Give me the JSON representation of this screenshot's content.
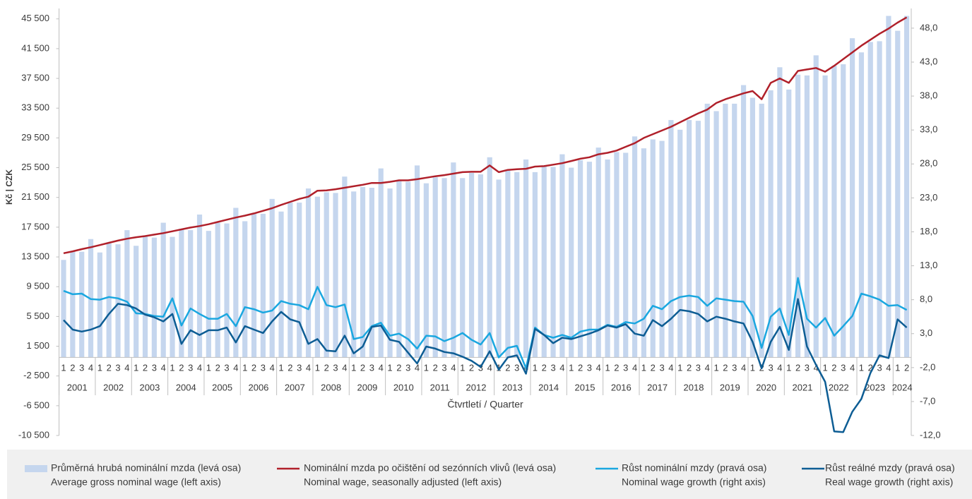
{
  "chart_data": {
    "type": "bar",
    "ylabel": "Kč | CZK",
    "xlabel": "Čtvrtletí / Quarter",
    "categories": [
      "1",
      "2",
      "3",
      "4",
      "1",
      "2",
      "3",
      "4",
      "1",
      "2",
      "3",
      "4",
      "1",
      "2",
      "3",
      "4",
      "1",
      "2",
      "3",
      "4",
      "1",
      "2",
      "3",
      "4",
      "1",
      "2",
      "3",
      "4",
      "1",
      "2",
      "3",
      "4",
      "1",
      "2",
      "3",
      "4",
      "1",
      "2",
      "3",
      "4",
      "1",
      "2",
      "3",
      "4",
      "1",
      "2",
      "3",
      "4",
      "1",
      "2",
      "3",
      "4",
      "1",
      "2",
      "3",
      "4",
      "1",
      "2",
      "3",
      "4",
      "1",
      "2",
      "3",
      "4",
      "1",
      "2",
      "3",
      "4",
      "1",
      "2",
      "3",
      "4",
      "1",
      "2",
      "3",
      "4",
      "1",
      "2",
      "3",
      "4",
      "1",
      "2",
      "3",
      "4",
      "1",
      "2",
      "3",
      "4",
      "1",
      "2",
      "3",
      "4",
      "1",
      "2"
    ],
    "years": [
      "2001",
      "2002",
      "2003",
      "2004",
      "2005",
      "2006",
      "2007",
      "2008",
      "2009",
      "2010",
      "2011",
      "2012",
      "2013",
      "2014",
      "2015",
      "2016",
      "2017",
      "2018",
      "2019",
      "2020",
      "2021",
      "2022",
      "2023",
      "2024"
    ],
    "ylim": [
      -10500,
      46900
    ],
    "yticks": [
      {
        "value": 45500,
        "label": "45 500"
      },
      {
        "value": 41500,
        "label": "41 500"
      },
      {
        "value": 37500,
        "label": "37 500"
      },
      {
        "value": 33500,
        "label": "33 500"
      },
      {
        "value": 29500,
        "label": "29 500"
      },
      {
        "value": 25500,
        "label": "25 500"
      },
      {
        "value": 21500,
        "label": "21 500"
      },
      {
        "value": 17500,
        "label": "17 500"
      },
      {
        "value": 13500,
        "label": "13 500"
      },
      {
        "value": 9500,
        "label": "9 500"
      },
      {
        "value": 5500,
        "label": "5 500"
      },
      {
        "value": 1500,
        "label": "1 500"
      },
      {
        "value": -2500,
        "label": "-2 500"
      },
      {
        "value": -6500,
        "label": "-6 500"
      },
      {
        "value": -10500,
        "label": "-10 500"
      }
    ],
    "y2lim": [
      -12,
      50.9
    ],
    "y2ticks": [
      {
        "value": 48,
        "label": "48,0"
      },
      {
        "value": 43,
        "label": "43,0"
      },
      {
        "value": 38,
        "label": "38,0"
      },
      {
        "value": 33,
        "label": "33,0"
      },
      {
        "value": 28,
        "label": "28,0"
      },
      {
        "value": 23,
        "label": "23,0"
      },
      {
        "value": 18,
        "label": "18,0"
      },
      {
        "value": 13,
        "label": "13,0"
      },
      {
        "value": 8,
        "label": "8,0"
      },
      {
        "value": 3,
        "label": "3,0"
      },
      {
        "value": -2,
        "label": "-2,0"
      },
      {
        "value": -7,
        "label": "-7,0"
      },
      {
        "value": -12,
        "label": "-12,0"
      }
    ],
    "grid": false,
    "legend": "bottom",
    "series": [
      {
        "name": "Průměrná hrubá nominální mzda (levá osa)",
        "name_en": "Average gross nominal wage (left axis)",
        "type": "bar",
        "color": "#c5d6ee",
        "axis": "y",
        "values": [
          13100,
          14300,
          14200,
          15900,
          14100,
          15300,
          15200,
          17100,
          15000,
          16300,
          16100,
          18100,
          16200,
          17300,
          17100,
          19200,
          17000,
          18100,
          18000,
          20100,
          18300,
          19400,
          19300,
          21300,
          19600,
          20800,
          20800,
          22700,
          21600,
          22200,
          22100,
          24300,
          22300,
          22900,
          22800,
          25400,
          22700,
          23700,
          23600,
          25800,
          23400,
          24200,
          24100,
          26200,
          24100,
          24800,
          24600,
          26900,
          23900,
          25100,
          24900,
          26600,
          24900,
          25700,
          25600,
          27300,
          25500,
          26500,
          26300,
          28200,
          26600,
          27600,
          27500,
          29700,
          28100,
          29300,
          29100,
          31900,
          30600,
          31900,
          31800,
          34100,
          33100,
          34100,
          34100,
          36600,
          34900,
          34100,
          35900,
          39000,
          36000,
          38000,
          37900,
          40600,
          37900,
          39200,
          39400,
          42900,
          41000,
          42400,
          42500,
          45900,
          43900,
          45900
        ]
      },
      {
        "name": "Nominální mzda po očištění od sezónních vlivů (levá osa)",
        "name_en": "Nominal wage, seasonally adjusted (left axis)",
        "type": "line",
        "color": "#b0202a",
        "axis": "y",
        "values": [
          14000,
          14250,
          14550,
          14800,
          15100,
          15400,
          15700,
          15950,
          16150,
          16300,
          16500,
          16700,
          16950,
          17200,
          17450,
          17650,
          17900,
          18200,
          18500,
          18800,
          19050,
          19350,
          19700,
          20050,
          20500,
          20900,
          21300,
          21600,
          22400,
          22450,
          22600,
          22800,
          23000,
          23200,
          23450,
          23450,
          23600,
          23800,
          23800,
          23950,
          24150,
          24350,
          24500,
          24700,
          24900,
          24950,
          24950,
          25800,
          24900,
          25200,
          25300,
          25350,
          25650,
          25700,
          25900,
          26100,
          26400,
          26700,
          26900,
          27300,
          27500,
          27800,
          28300,
          28800,
          29500,
          30000,
          30500,
          31000,
          31600,
          32200,
          32800,
          33300,
          34200,
          34700,
          35100,
          35500,
          35800,
          34700,
          36900,
          37500,
          36900,
          38500,
          38700,
          38900,
          38400,
          39200,
          40100,
          41000,
          41900,
          42700,
          43500,
          44200,
          45000,
          45700
        ]
      },
      {
        "name": "Růst nominální mzdy (pravá osa)",
        "name_en": "Nominal wage growth (right axis)",
        "type": "line",
        "color": "#1aa7e0",
        "axis": "y2",
        "values": [
          9.3,
          8.8,
          8.9,
          8.1,
          8.0,
          8.4,
          8.2,
          7.7,
          6.0,
          5.9,
          5.6,
          5.5,
          8.2,
          4.2,
          6.7,
          5.9,
          5.2,
          5.2,
          5.9,
          4.1,
          6.9,
          6.6,
          6.1,
          6.4,
          7.8,
          7.4,
          7.2,
          6.6,
          9.9,
          7.2,
          6.9,
          7.3,
          2.2,
          2.5,
          4.1,
          4.6,
          2.7,
          3.0,
          2.2,
          0.8,
          2.7,
          2.6,
          1.9,
          2.4,
          3.1,
          2.1,
          1.4,
          3.1,
          -0.5,
          0.9,
          1.2,
          -2.1,
          3.9,
          2.8,
          2.4,
          2.8,
          2.4,
          3.3,
          3.6,
          3.6,
          4.3,
          4.0,
          4.7,
          4.5,
          5.2,
          7.1,
          6.6,
          7.8,
          8.4,
          8.6,
          8.4,
          7.1,
          8.2,
          8.0,
          7.8,
          7.7,
          5.6,
          0.9,
          5.5,
          6.7,
          2.8,
          11.2,
          5.2,
          3.9,
          5.3,
          2.7,
          4.1,
          5.6,
          8.9,
          8.5,
          8.0,
          7.1,
          7.2,
          6.5
        ]
      },
      {
        "name": "Růst reálné mzdy (pravá osa)",
        "name_en": "Real wage growth (right axis)",
        "type": "line",
        "color": "#0d5d94",
        "axis": "y2",
        "values": [
          5.0,
          3.6,
          3.3,
          3.6,
          4.1,
          5.9,
          7.4,
          7.2,
          6.7,
          5.8,
          5.4,
          4.8,
          5.9,
          1.5,
          3.5,
          2.8,
          3.5,
          3.5,
          3.9,
          1.7,
          4.1,
          3.6,
          3.1,
          4.8,
          6.2,
          5.1,
          4.7,
          1.5,
          2.2,
          0.5,
          0.4,
          2.7,
          0.1,
          1.1,
          4.0,
          4.2,
          2.1,
          1.8,
          0.2,
          -1.4,
          1.1,
          0.8,
          0.3,
          0.1,
          -0.4,
          -1.0,
          -1.9,
          0.4,
          -2.3,
          -0.5,
          -0.2,
          -2.9,
          3.7,
          2.8,
          1.6,
          2.4,
          2.2,
          2.6,
          3.0,
          3.5,
          4.2,
          3.9,
          4.4,
          3.0,
          2.7,
          5.0,
          4.1,
          5.2,
          6.5,
          6.3,
          5.9,
          4.8,
          5.5,
          5.2,
          4.8,
          4.5,
          1.8,
          -2.1,
          1.8,
          4.0,
          0.6,
          8.1,
          1.1,
          -1.6,
          -4.1,
          -11.4,
          -11.5,
          -8.5,
          -6.6,
          -2.8,
          -0.2,
          -0.6,
          5.1,
          3.9
        ]
      }
    ]
  }
}
